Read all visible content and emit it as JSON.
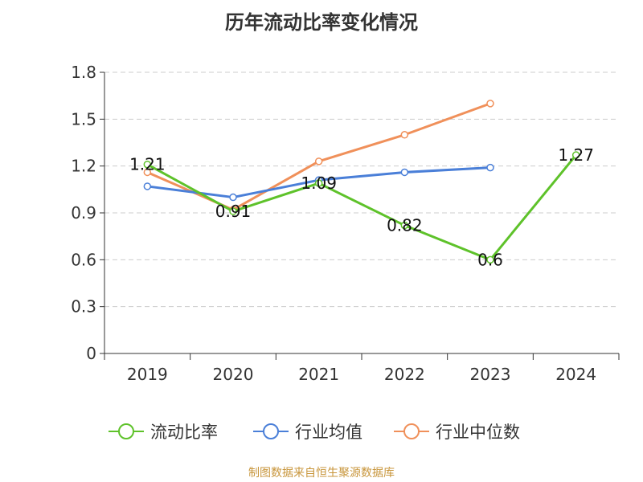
{
  "chart_data": {
    "type": "line",
    "title": "历年流动比率变化情况",
    "categories": [
      "2019",
      "2020",
      "2021",
      "2022",
      "2023",
      "2024"
    ],
    "ylim": [
      0,
      1.8
    ],
    "yticks": [
      "0",
      "0.3",
      "0.6",
      "0.9",
      "1.2",
      "1.5",
      "1.8"
    ],
    "grid": true,
    "legend_position": "bottom",
    "series": [
      {
        "name": "流动比率",
        "color": "#5ec22a",
        "values": [
          1.21,
          0.91,
          1.09,
          0.82,
          0.6,
          1.27
        ],
        "labels": [
          "1.21",
          "0.91",
          "1.09",
          "0.82",
          "0.6",
          "1.27"
        ]
      },
      {
        "name": "行业均值",
        "color": "#4a7fd8",
        "values": [
          1.07,
          1.0,
          1.11,
          1.16,
          1.19,
          null
        ]
      },
      {
        "name": "行业中位数",
        "color": "#f0905a",
        "values": [
          1.16,
          0.92,
          1.23,
          1.4,
          1.6,
          null
        ]
      }
    ]
  },
  "footer": {
    "source": "制图数据来自恒生聚源数据库"
  }
}
